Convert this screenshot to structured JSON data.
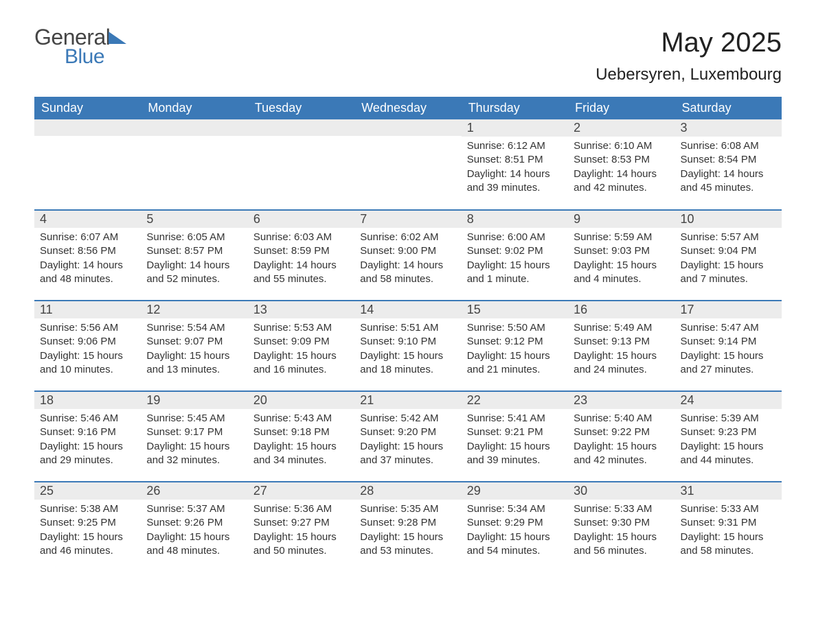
{
  "logo": {
    "line1": "General",
    "line2": "Blue"
  },
  "title": "May 2025",
  "location": "Uebersyren, Luxembourg",
  "header_bg": "#3b79b7",
  "daynum_bg": "#ececec",
  "columns": [
    "Sunday",
    "Monday",
    "Tuesday",
    "Wednesday",
    "Thursday",
    "Friday",
    "Saturday"
  ],
  "weeks": [
    [
      {
        "n": "",
        "sunrise": "",
        "sunset": "",
        "daylight": ""
      },
      {
        "n": "",
        "sunrise": "",
        "sunset": "",
        "daylight": ""
      },
      {
        "n": "",
        "sunrise": "",
        "sunset": "",
        "daylight": ""
      },
      {
        "n": "",
        "sunrise": "",
        "sunset": "",
        "daylight": ""
      },
      {
        "n": "1",
        "sunrise": "Sunrise: 6:12 AM",
        "sunset": "Sunset: 8:51 PM",
        "daylight": "Daylight: 14 hours and 39 minutes."
      },
      {
        "n": "2",
        "sunrise": "Sunrise: 6:10 AM",
        "sunset": "Sunset: 8:53 PM",
        "daylight": "Daylight: 14 hours and 42 minutes."
      },
      {
        "n": "3",
        "sunrise": "Sunrise: 6:08 AM",
        "sunset": "Sunset: 8:54 PM",
        "daylight": "Daylight: 14 hours and 45 minutes."
      }
    ],
    [
      {
        "n": "4",
        "sunrise": "Sunrise: 6:07 AM",
        "sunset": "Sunset: 8:56 PM",
        "daylight": "Daylight: 14 hours and 48 minutes."
      },
      {
        "n": "5",
        "sunrise": "Sunrise: 6:05 AM",
        "sunset": "Sunset: 8:57 PM",
        "daylight": "Daylight: 14 hours and 52 minutes."
      },
      {
        "n": "6",
        "sunrise": "Sunrise: 6:03 AM",
        "sunset": "Sunset: 8:59 PM",
        "daylight": "Daylight: 14 hours and 55 minutes."
      },
      {
        "n": "7",
        "sunrise": "Sunrise: 6:02 AM",
        "sunset": "Sunset: 9:00 PM",
        "daylight": "Daylight: 14 hours and 58 minutes."
      },
      {
        "n": "8",
        "sunrise": "Sunrise: 6:00 AM",
        "sunset": "Sunset: 9:02 PM",
        "daylight": "Daylight: 15 hours and 1 minute."
      },
      {
        "n": "9",
        "sunrise": "Sunrise: 5:59 AM",
        "sunset": "Sunset: 9:03 PM",
        "daylight": "Daylight: 15 hours and 4 minutes."
      },
      {
        "n": "10",
        "sunrise": "Sunrise: 5:57 AM",
        "sunset": "Sunset: 9:04 PM",
        "daylight": "Daylight: 15 hours and 7 minutes."
      }
    ],
    [
      {
        "n": "11",
        "sunrise": "Sunrise: 5:56 AM",
        "sunset": "Sunset: 9:06 PM",
        "daylight": "Daylight: 15 hours and 10 minutes."
      },
      {
        "n": "12",
        "sunrise": "Sunrise: 5:54 AM",
        "sunset": "Sunset: 9:07 PM",
        "daylight": "Daylight: 15 hours and 13 minutes."
      },
      {
        "n": "13",
        "sunrise": "Sunrise: 5:53 AM",
        "sunset": "Sunset: 9:09 PM",
        "daylight": "Daylight: 15 hours and 16 minutes."
      },
      {
        "n": "14",
        "sunrise": "Sunrise: 5:51 AM",
        "sunset": "Sunset: 9:10 PM",
        "daylight": "Daylight: 15 hours and 18 minutes."
      },
      {
        "n": "15",
        "sunrise": "Sunrise: 5:50 AM",
        "sunset": "Sunset: 9:12 PM",
        "daylight": "Daylight: 15 hours and 21 minutes."
      },
      {
        "n": "16",
        "sunrise": "Sunrise: 5:49 AM",
        "sunset": "Sunset: 9:13 PM",
        "daylight": "Daylight: 15 hours and 24 minutes."
      },
      {
        "n": "17",
        "sunrise": "Sunrise: 5:47 AM",
        "sunset": "Sunset: 9:14 PM",
        "daylight": "Daylight: 15 hours and 27 minutes."
      }
    ],
    [
      {
        "n": "18",
        "sunrise": "Sunrise: 5:46 AM",
        "sunset": "Sunset: 9:16 PM",
        "daylight": "Daylight: 15 hours and 29 minutes."
      },
      {
        "n": "19",
        "sunrise": "Sunrise: 5:45 AM",
        "sunset": "Sunset: 9:17 PM",
        "daylight": "Daylight: 15 hours and 32 minutes."
      },
      {
        "n": "20",
        "sunrise": "Sunrise: 5:43 AM",
        "sunset": "Sunset: 9:18 PM",
        "daylight": "Daylight: 15 hours and 34 minutes."
      },
      {
        "n": "21",
        "sunrise": "Sunrise: 5:42 AM",
        "sunset": "Sunset: 9:20 PM",
        "daylight": "Daylight: 15 hours and 37 minutes."
      },
      {
        "n": "22",
        "sunrise": "Sunrise: 5:41 AM",
        "sunset": "Sunset: 9:21 PM",
        "daylight": "Daylight: 15 hours and 39 minutes."
      },
      {
        "n": "23",
        "sunrise": "Sunrise: 5:40 AM",
        "sunset": "Sunset: 9:22 PM",
        "daylight": "Daylight: 15 hours and 42 minutes."
      },
      {
        "n": "24",
        "sunrise": "Sunrise: 5:39 AM",
        "sunset": "Sunset: 9:23 PM",
        "daylight": "Daylight: 15 hours and 44 minutes."
      }
    ],
    [
      {
        "n": "25",
        "sunrise": "Sunrise: 5:38 AM",
        "sunset": "Sunset: 9:25 PM",
        "daylight": "Daylight: 15 hours and 46 minutes."
      },
      {
        "n": "26",
        "sunrise": "Sunrise: 5:37 AM",
        "sunset": "Sunset: 9:26 PM",
        "daylight": "Daylight: 15 hours and 48 minutes."
      },
      {
        "n": "27",
        "sunrise": "Sunrise: 5:36 AM",
        "sunset": "Sunset: 9:27 PM",
        "daylight": "Daylight: 15 hours and 50 minutes."
      },
      {
        "n": "28",
        "sunrise": "Sunrise: 5:35 AM",
        "sunset": "Sunset: 9:28 PM",
        "daylight": "Daylight: 15 hours and 53 minutes."
      },
      {
        "n": "29",
        "sunrise": "Sunrise: 5:34 AM",
        "sunset": "Sunset: 9:29 PM",
        "daylight": "Daylight: 15 hours and 54 minutes."
      },
      {
        "n": "30",
        "sunrise": "Sunrise: 5:33 AM",
        "sunset": "Sunset: 9:30 PM",
        "daylight": "Daylight: 15 hours and 56 minutes."
      },
      {
        "n": "31",
        "sunrise": "Sunrise: 5:33 AM",
        "sunset": "Sunset: 9:31 PM",
        "daylight": "Daylight: 15 hours and 58 minutes."
      }
    ]
  ]
}
